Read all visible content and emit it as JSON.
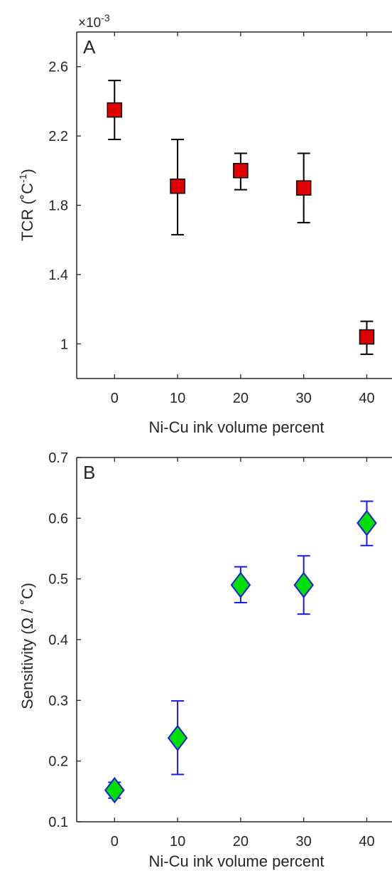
{
  "chart_data": [
    {
      "panel_label": "A",
      "type": "scatter",
      "xlabel": "Ni-Cu ink volume percent",
      "ylabel": "TCR (˚C⁻¹)",
      "ylabel_parts": {
        "main": "TCR (",
        "unit": "˚C",
        "sup": "-1",
        "close": ")"
      },
      "y_multiplier": "×10",
      "y_multiplier_exp": "-3",
      "xlim": [
        -6,
        44
      ],
      "ylim": [
        0.8,
        2.8
      ],
      "xticks": [
        0,
        10,
        20,
        30,
        40
      ],
      "xtick_labels": [
        "0",
        "10",
        "20",
        "30",
        "40"
      ],
      "yticks": [
        1.0,
        1.4,
        1.8,
        2.2,
        2.6
      ],
      "ytick_labels": [
        "1",
        "1.4",
        "1.8",
        "2.2",
        "2.6"
      ],
      "marker": "square",
      "marker_fill": "#e00000",
      "marker_edge": "#000000",
      "errorbar_color": "#000000",
      "points": [
        {
          "x": 0,
          "y": 2.35,
          "lower": 2.18,
          "upper": 2.52
        },
        {
          "x": 10,
          "y": 1.91,
          "lower": 1.63,
          "upper": 2.18
        },
        {
          "x": 20,
          "y": 2.0,
          "lower": 1.89,
          "upper": 2.1
        },
        {
          "x": 30,
          "y": 1.9,
          "lower": 1.7,
          "upper": 2.1
        },
        {
          "x": 40,
          "y": 1.04,
          "lower": 0.94,
          "upper": 1.13
        }
      ]
    },
    {
      "panel_label": "B",
      "type": "scatter",
      "xlabel": "Ni-Cu ink volume percent",
      "ylabel": "Sensitivity (Ω / ˚C)",
      "xlim": [
        -6,
        44
      ],
      "ylim": [
        0.1,
        0.7
      ],
      "xticks": [
        0,
        10,
        20,
        30,
        40
      ],
      "xtick_labels": [
        "0",
        "10",
        "20",
        "30",
        "40"
      ],
      "yticks": [
        0.1,
        0.2,
        0.3,
        0.4,
        0.5,
        0.6,
        0.7
      ],
      "ytick_labels": [
        "0.1",
        "0.2",
        "0.3",
        "0.4",
        "0.5",
        "0.6",
        "0.7"
      ],
      "marker": "diamond",
      "marker_fill": "#00e000",
      "marker_edge": "#1a1ae6",
      "errorbar_color": "#1a1ae6",
      "points": [
        {
          "x": 0,
          "y": 0.152,
          "lower": 0.139,
          "upper": 0.165
        },
        {
          "x": 10,
          "y": 0.238,
          "lower": 0.178,
          "upper": 0.299
        },
        {
          "x": 20,
          "y": 0.49,
          "lower": 0.461,
          "upper": 0.52
        },
        {
          "x": 30,
          "y": 0.49,
          "lower": 0.442,
          "upper": 0.538
        },
        {
          "x": 40,
          "y": 0.592,
          "lower": 0.555,
          "upper": 0.628
        }
      ]
    }
  ]
}
